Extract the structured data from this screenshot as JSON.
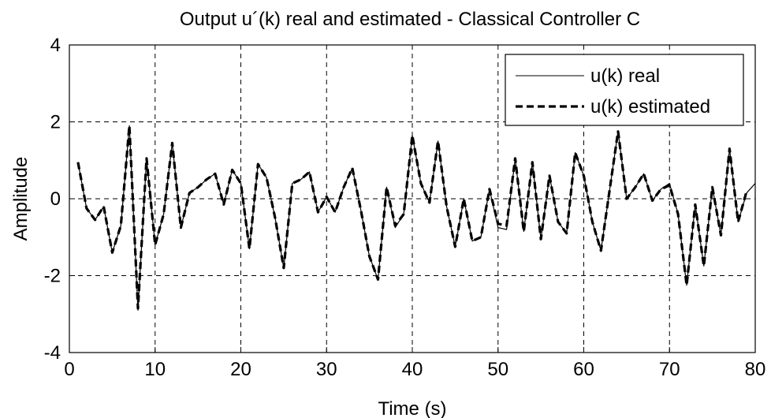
{
  "chart_data": {
    "type": "line",
    "title": "Output u´(k) real and estimated - Classical Controller C",
    "xlabel": "Time (s)",
    "ylabel": "Amplitude",
    "xlim": [
      0,
      80
    ],
    "ylim": [
      -4,
      4
    ],
    "xticks": [
      "0",
      "10",
      "20",
      "30",
      "40",
      "50",
      "60",
      "70",
      "80"
    ],
    "yticks": [
      "-4",
      "-2",
      "0",
      "2",
      "4"
    ],
    "grid": true,
    "legend_position": "top-right",
    "x": [
      1,
      2,
      3,
      4,
      5,
      6,
      7,
      8,
      9,
      10,
      11,
      12,
      13,
      14,
      15,
      16,
      17,
      18,
      19,
      20,
      21,
      22,
      23,
      24,
      25,
      26,
      27,
      28,
      29,
      30,
      31,
      32,
      33,
      34,
      35,
      36,
      37,
      38,
      39,
      40,
      41,
      42,
      43,
      44,
      45,
      46,
      47,
      48,
      49,
      50,
      51,
      52,
      53,
      54,
      55,
      56,
      57,
      58,
      59,
      60,
      61,
      62,
      63,
      64,
      65,
      66,
      67,
      68,
      69,
      70,
      71,
      72,
      73,
      74,
      75,
      76,
      77,
      78,
      79,
      80
    ],
    "series": [
      {
        "name": "u(k) real",
        "style": "solid-thin",
        "color": "#000000",
        "values": [
          0.95,
          -0.25,
          -0.55,
          -0.2,
          -1.4,
          -0.7,
          1.9,
          -2.9,
          1.05,
          -1.2,
          -0.4,
          1.45,
          -0.75,
          0.15,
          0.3,
          0.5,
          0.65,
          -0.15,
          0.75,
          0.4,
          -1.3,
          0.9,
          0.55,
          -0.5,
          -1.8,
          0.4,
          0.5,
          0.7,
          -0.35,
          0.05,
          -0.35,
          0.3,
          0.8,
          -0.3,
          -1.5,
          -2.1,
          0.3,
          -0.75,
          -0.4,
          1.65,
          0.4,
          -0.1,
          1.5,
          -0.2,
          -1.25,
          0.0,
          -1.1,
          -1.0,
          0.25,
          -0.75,
          -0.8,
          1.05,
          -0.85,
          0.95,
          -1.05,
          0.6,
          -0.6,
          -0.9,
          1.2,
          0.6,
          -0.6,
          -1.35,
          0.2,
          1.75,
          0.0,
          0.3,
          0.65,
          -0.05,
          0.25,
          0.4,
          -0.4,
          -2.25,
          -0.15,
          -1.75,
          0.3,
          -0.95,
          1.3,
          -0.6,
          0.15,
          0.4
        ]
      },
      {
        "name": "u(k) estimated",
        "style": "dashed-thick",
        "color": "#000000",
        "values": [
          0.95,
          -0.25,
          -0.55,
          -0.2,
          -1.4,
          -0.7,
          1.9,
          -2.85,
          1.05,
          -1.2,
          -0.4,
          1.45,
          -0.75,
          0.15,
          0.3,
          0.5,
          0.65,
          -0.15,
          0.75,
          0.4,
          -1.3,
          0.9,
          0.55,
          -0.5,
          -1.8,
          0.4,
          0.5,
          0.7,
          -0.35,
          0.05,
          -0.35,
          0.3,
          0.8,
          -0.3,
          -1.5,
          -2.1,
          0.3,
          -0.7,
          -0.4,
          1.65,
          0.4,
          -0.1,
          1.5,
          -0.2,
          -1.25,
          0.0,
          -1.1,
          -1.0,
          0.25,
          -0.65,
          -0.7,
          1.05,
          -0.85,
          0.95,
          -1.05,
          0.6,
          -0.6,
          -0.9,
          1.2,
          0.6,
          -0.6,
          -1.35,
          0.2,
          1.75,
          0.0,
          0.3,
          0.65,
          -0.05,
          0.25,
          0.35,
          -0.4,
          -2.25,
          -0.15,
          -1.75,
          0.3,
          -0.95,
          1.3,
          -0.6,
          0.2,
          null
        ]
      }
    ]
  }
}
